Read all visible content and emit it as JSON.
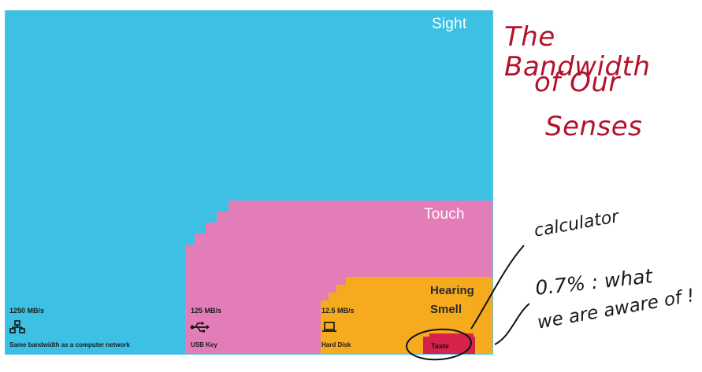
{
  "title_handwritten": [
    "The Bandwidth",
    "of Our",
    "Senses"
  ],
  "colors": {
    "sight": "#3cc1e4",
    "touch": "#e27db7",
    "hearing_smell": "#f6aa1d",
    "taste": "#d7234b",
    "handwriting": "#b3132a"
  },
  "senses": {
    "sight": "Sight",
    "touch": "Touch",
    "hearing": "Hearing",
    "smell": "Smell",
    "taste": "Taste"
  },
  "rates": [
    {
      "value": "1250 MB/s",
      "icon": "network-icon",
      "desc": "Same bandwidth as a computer network"
    },
    {
      "value": "125 MB/s",
      "icon": "usb-icon",
      "desc": "USB Key"
    },
    {
      "value": "12.5 MB/s",
      "icon": "laptop-icon",
      "desc": "Hard Disk"
    }
  ],
  "annotations": {
    "calculator": "calculator",
    "percent": "0.7% : what",
    "aware": "we are aware of !"
  }
}
